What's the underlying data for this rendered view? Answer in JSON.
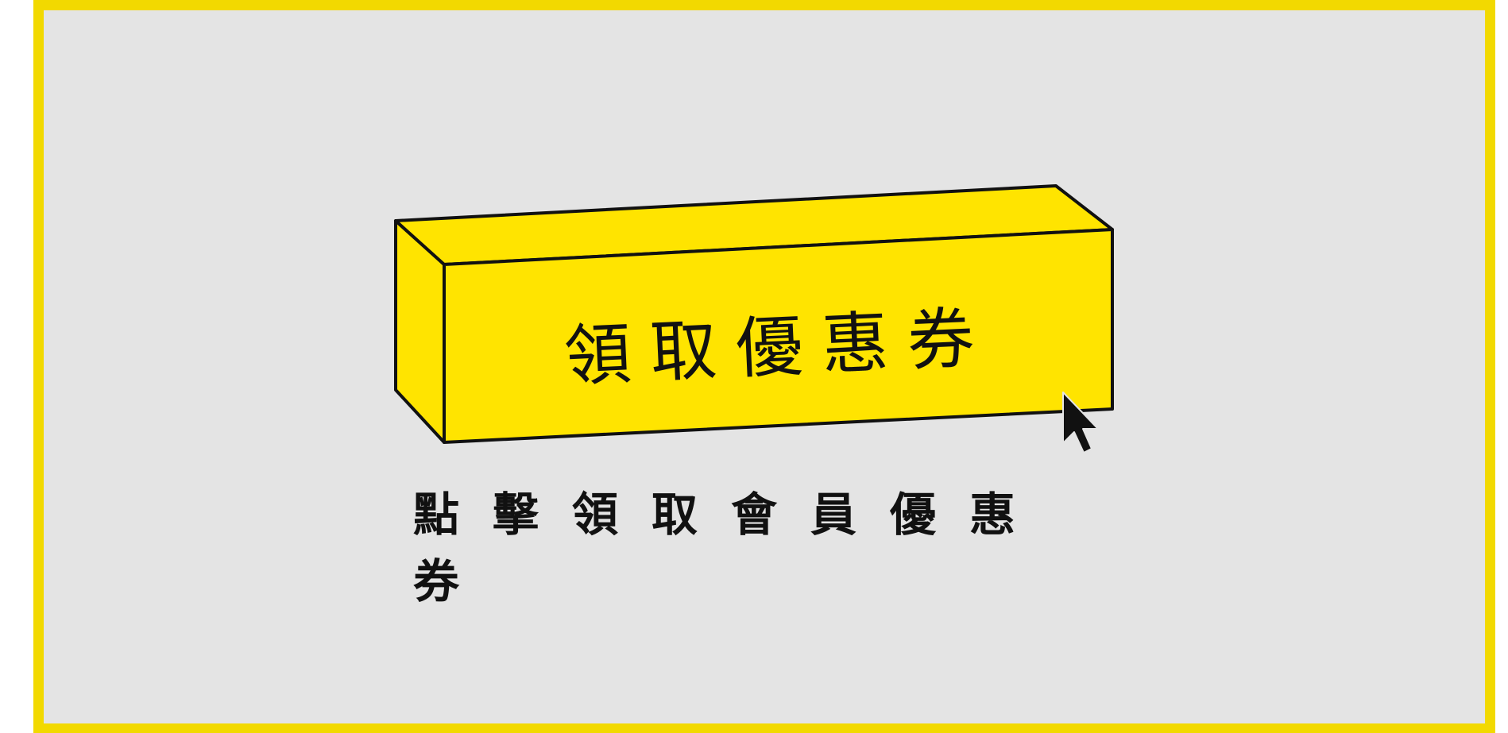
{
  "button": {
    "label": "領取優惠券",
    "face_color": "#ffe400",
    "outline_color": "#111111"
  },
  "caption": {
    "text": "點擊領取會員優惠券"
  },
  "colors": {
    "border": "#f2d900",
    "background": "#e4e4e4"
  },
  "icons": {
    "cursor": "mouse-pointer-arrow"
  }
}
